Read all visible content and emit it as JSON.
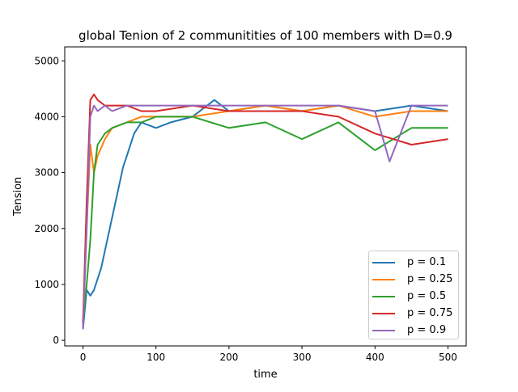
{
  "chart_data": {
    "type": "line",
    "title": "global Tenion of 2 communitities of 100 members with  D=0.9",
    "xlabel": "time",
    "ylabel": "Tension",
    "xlim": [
      -25,
      525
    ],
    "ylim": [
      -100,
      5250
    ],
    "x_ticks": [
      0,
      100,
      200,
      300,
      400,
      500
    ],
    "y_ticks": [
      0,
      1000,
      2000,
      3000,
      4000,
      5000
    ],
    "legend_position": "lower-right",
    "series": [
      {
        "name": "p = 0.1",
        "color": "#1f77b4",
        "x": [
          0,
          5,
          10,
          15,
          20,
          25,
          30,
          35,
          40,
          45,
          50,
          55,
          60,
          70,
          80,
          100,
          120,
          150,
          180,
          200,
          250,
          300,
          350,
          400,
          450,
          500
        ],
        "y": [
          200,
          900,
          800,
          900,
          1100,
          1300,
          1600,
          1900,
          2200,
          2500,
          2800,
          3100,
          3300,
          3700,
          3900,
          3800,
          3900,
          4000,
          4300,
          4100,
          4200,
          4100,
          4200,
          4100,
          4200,
          4100
        ]
      },
      {
        "name": "p = 0.25",
        "color": "#ff7f0e",
        "x": [
          0,
          5,
          10,
          15,
          20,
          30,
          40,
          60,
          80,
          100,
          150,
          200,
          250,
          300,
          350,
          400,
          450,
          500
        ],
        "y": [
          300,
          2000,
          3500,
          3000,
          3300,
          3600,
          3800,
          3900,
          4000,
          4000,
          4000,
          4100,
          4200,
          4100,
          4200,
          4000,
          4100,
          4100
        ]
      },
      {
        "name": "p = 0.5",
        "color": "#2ca02c",
        "x": [
          0,
          5,
          10,
          15,
          20,
          30,
          40,
          60,
          80,
          100,
          150,
          200,
          250,
          300,
          350,
          400,
          450,
          500
        ],
        "y": [
          300,
          1000,
          1800,
          3000,
          3500,
          3700,
          3800,
          3900,
          3900,
          4000,
          4000,
          3800,
          3900,
          3600,
          3900,
          3400,
          3800,
          3800
        ]
      },
      {
        "name": "p = 0.75",
        "color": "#d62728",
        "x": [
          0,
          5,
          10,
          15,
          20,
          30,
          40,
          60,
          80,
          100,
          150,
          200,
          250,
          300,
          350,
          400,
          450,
          500
        ],
        "y": [
          300,
          2500,
          4300,
          4400,
          4300,
          4200,
          4200,
          4200,
          4100,
          4100,
          4200,
          4100,
          4100,
          4100,
          4000,
          3700,
          3500,
          3600
        ]
      },
      {
        "name": "p = 0.9",
        "color": "#9467bd",
        "x": [
          0,
          5,
          10,
          15,
          20,
          30,
          40,
          60,
          80,
          100,
          150,
          200,
          250,
          300,
          350,
          400,
          420,
          450,
          500
        ],
        "y": [
          200,
          2000,
          4000,
          4200,
          4100,
          4200,
          4100,
          4200,
          4200,
          4200,
          4200,
          4200,
          4200,
          4200,
          4200,
          4100,
          3200,
          4200,
          4200
        ]
      }
    ]
  }
}
